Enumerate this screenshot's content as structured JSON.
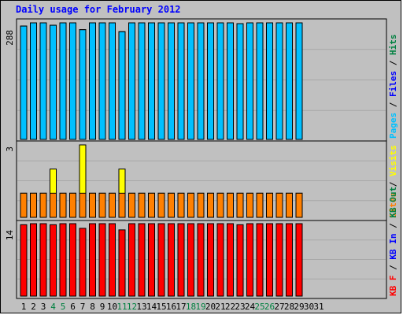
{
  "title": "Daily usage for February 2012",
  "chart_data": [
    {
      "type": "bar",
      "panel": "top",
      "y_label_max": "288",
      "right_legend": [
        {
          "text": "Pages",
          "color": "#00c0ff"
        },
        {
          "text": " / ",
          "color": "#000000"
        },
        {
          "text": "Files",
          "color": "#0000ff"
        },
        {
          "text": " / ",
          "color": "#000000"
        },
        {
          "text": "Hits",
          "color": "#008040"
        }
      ],
      "ymax": 288,
      "series": [
        {
          "name": "Hits",
          "color": "#008040",
          "values": [
            280,
            288,
            288,
            282,
            288,
            288,
            271,
            288,
            288,
            288,
            266,
            288,
            288,
            288,
            288,
            288,
            288,
            288,
            288,
            288,
            288,
            288,
            286,
            288,
            288,
            288,
            288,
            288,
            288
          ]
        },
        {
          "name": "Files",
          "color": "#0000ff",
          "values": [
            280,
            288,
            288,
            282,
            288,
            288,
            271,
            288,
            288,
            288,
            266,
            288,
            288,
            288,
            288,
            288,
            288,
            288,
            288,
            288,
            288,
            288,
            286,
            288,
            288,
            288,
            288,
            288,
            288
          ]
        },
        {
          "name": "Pages",
          "color": "#00c0ff",
          "values": [
            280,
            288,
            288,
            282,
            288,
            288,
            271,
            288,
            288,
            288,
            266,
            288,
            288,
            288,
            288,
            288,
            288,
            288,
            288,
            288,
            288,
            288,
            286,
            288,
            288,
            288,
            288,
            288,
            288
          ]
        }
      ]
    },
    {
      "type": "bar",
      "panel": "middle",
      "y_label_max": "3",
      "right_legend": [
        {
          "text": "Sites",
          "color": "#ff8000"
        },
        {
          "text": " / ",
          "color": "#000000"
        },
        {
          "text": "Visits",
          "color": "#ffff00"
        }
      ],
      "ymax": 3,
      "series": [
        {
          "name": "Visits",
          "color": "#ffff00",
          "values": [
            1,
            1,
            1,
            2,
            1,
            1,
            3,
            1,
            1,
            1,
            2,
            1,
            1,
            1,
            1,
            1,
            1,
            1,
            1,
            1,
            1,
            1,
            1,
            1,
            1,
            1,
            1,
            1,
            1
          ]
        },
        {
          "name": "Sites",
          "color": "#ff8000",
          "values": [
            1,
            1,
            1,
            1,
            1,
            1,
            1,
            1,
            1,
            1,
            1,
            1,
            1,
            1,
            1,
            1,
            1,
            1,
            1,
            1,
            1,
            1,
            1,
            1,
            1,
            1,
            1,
            1,
            1
          ]
        }
      ]
    },
    {
      "type": "bar",
      "panel": "bottom",
      "y_label_max": "14",
      "right_legend": [
        {
          "text": "KB F",
          "color": "#ff0000"
        },
        {
          "text": " / ",
          "color": "#000000"
        },
        {
          "text": "KB In",
          "color": "#0000ff"
        },
        {
          "text": " / ",
          "color": "#000000"
        },
        {
          "text": "KB Out",
          "color": "#008040"
        }
      ],
      "ymax": 14,
      "series": [
        {
          "name": "KB F",
          "color": "#ff0000",
          "values": [
            13.8,
            14,
            14,
            13.8,
            14,
            14,
            13.1,
            14,
            14,
            14,
            12.8,
            14,
            14,
            14,
            14,
            14,
            14,
            14,
            14,
            14,
            14,
            14,
            13.8,
            14,
            14,
            14,
            14,
            14,
            14
          ]
        }
      ]
    }
  ],
  "x_axis": {
    "labels": [
      "1",
      "2",
      "3",
      "4",
      "5",
      "6",
      "7",
      "8",
      "9",
      "10",
      "11",
      "12",
      "13",
      "14",
      "15",
      "16",
      "17",
      "18",
      "19",
      "20",
      "21",
      "22",
      "23",
      "24",
      "25",
      "26",
      "27",
      "28",
      "29",
      "30",
      "31"
    ],
    "weekend_days": [
      4,
      5,
      11,
      12,
      18,
      19,
      25,
      26
    ],
    "weekday_color": "#000000",
    "weekend_color": "#008040"
  }
}
